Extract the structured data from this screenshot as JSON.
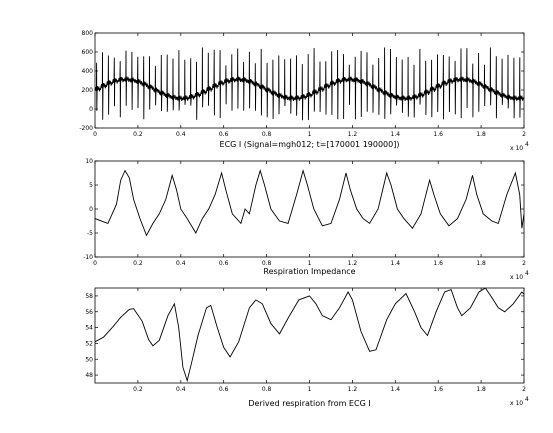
{
  "chart_data": [
    {
      "type": "line",
      "title": "",
      "xlabel": "ECG I   (Signal=mgh012; t=[170001 190000])",
      "ylabel": "",
      "x_multiplier_label": "x 10",
      "x_multiplier_exp": "4",
      "xlim": [
        0,
        20000
      ],
      "ylim": [
        -200,
        800
      ],
      "x_ticks": [
        0,
        2000,
        4000,
        6000,
        8000,
        10000,
        12000,
        14000,
        16000,
        18000,
        20000
      ],
      "x_tick_labels": [
        "0",
        "0.2",
        "0.4",
        "0.6",
        "0.8",
        "1",
        "1.2",
        "1.4",
        "1.6",
        "1.8",
        "2"
      ],
      "y_ticks": [
        -200,
        0,
        200,
        400,
        600,
        800
      ],
      "y_tick_labels": [
        "-200",
        "0",
        "200",
        "400",
        "600",
        "800"
      ],
      "grid": false,
      "series": [
        {
          "x_range": [
            0,
            20000
          ],
          "approx_beat_count": 73,
          "baseline_range": [
            100,
            300
          ],
          "r_peak_range": [
            450,
            650
          ],
          "trough_range": [
            -120,
            50
          ],
          "color": "#000000"
        }
      ]
    },
    {
      "type": "line",
      "title": "",
      "xlabel": "Respiration Impedance",
      "ylabel": "",
      "x_multiplier_label": "x 10",
      "x_multiplier_exp": "4",
      "xlim": [
        0,
        20000
      ],
      "ylim": [
        -10,
        10
      ],
      "x_ticks": [
        0,
        2000,
        4000,
        6000,
        8000,
        10000,
        12000,
        14000,
        16000,
        18000,
        20000
      ],
      "x_tick_labels": [
        "0",
        "0.2",
        "0.4",
        "0.6",
        "0.8",
        "1",
        "1.2",
        "1.4",
        "1.6",
        "1.8",
        "2"
      ],
      "y_ticks": [
        -10,
        -5,
        0,
        5,
        10
      ],
      "y_tick_labels": [
        "-10",
        "-5",
        "0",
        "5",
        "10"
      ],
      "grid": false,
      "series": [
        {
          "color": "#000000",
          "points": [
            [
              0,
              -2
            ],
            [
              600,
              -3
            ],
            [
              1000,
              1
            ],
            [
              1200,
              6
            ],
            [
              1400,
              8
            ],
            [
              1600,
              6.5
            ],
            [
              1800,
              2
            ],
            [
              2100,
              -2
            ],
            [
              2400,
              -5.5
            ],
            [
              2700,
              -3
            ],
            [
              3000,
              -1
            ],
            [
              3300,
              2
            ],
            [
              3600,
              7
            ],
            [
              3800,
              4
            ],
            [
              4000,
              0
            ],
            [
              4300,
              -2
            ],
            [
              4700,
              -5
            ],
            [
              5000,
              -2
            ],
            [
              5300,
              0
            ],
            [
              5600,
              3
            ],
            [
              5900,
              7.5
            ],
            [
              6100,
              4
            ],
            [
              6400,
              -1
            ],
            [
              6800,
              -3
            ],
            [
              7000,
              0
            ],
            [
              7200,
              -1
            ],
            [
              7500,
              5
            ],
            [
              7700,
              8
            ],
            [
              7900,
              5
            ],
            [
              8200,
              0
            ],
            [
              8600,
              -2.5
            ],
            [
              9000,
              -3
            ],
            [
              9400,
              3
            ],
            [
              9700,
              8
            ],
            [
              9900,
              5
            ],
            [
              10200,
              0
            ],
            [
              10600,
              -3.5
            ],
            [
              11000,
              -3
            ],
            [
              11400,
              2
            ],
            [
              11700,
              7.5
            ],
            [
              11900,
              4
            ],
            [
              12200,
              0
            ],
            [
              12500,
              -2
            ],
            [
              12800,
              -3
            ],
            [
              13200,
              0
            ],
            [
              13600,
              7.5
            ],
            [
              13800,
              5
            ],
            [
              14100,
              0
            ],
            [
              14400,
              -2
            ],
            [
              14800,
              -4
            ],
            [
              15200,
              -1
            ],
            [
              15600,
              6
            ],
            [
              15800,
              3
            ],
            [
              16100,
              -1
            ],
            [
              16500,
              -3.5
            ],
            [
              16900,
              -2
            ],
            [
              17300,
              2
            ],
            [
              17600,
              7
            ],
            [
              17800,
              3
            ],
            [
              18100,
              -1
            ],
            [
              18500,
              -2.5
            ],
            [
              18800,
              -3
            ],
            [
              19200,
              3
            ],
            [
              19600,
              7.5
            ],
            [
              19800,
              3
            ],
            [
              19900,
              -4
            ],
            [
              20000,
              -1
            ]
          ]
        }
      ]
    },
    {
      "type": "line",
      "title": "",
      "xlabel": "Derived respiration from ECG I",
      "ylabel": "",
      "x_multiplier_label": "x 10",
      "x_multiplier_exp": "4",
      "xlim": [
        0,
        20000
      ],
      "ylim": [
        47,
        59
      ],
      "x_ticks": [
        2000,
        4000,
        6000,
        8000,
        10000,
        12000,
        14000,
        16000,
        18000,
        20000
      ],
      "x_tick_labels": [
        "0.2",
        "0.4",
        "0.6",
        "0.8",
        "1",
        "1.2",
        "1.4",
        "1.6",
        "1.8",
        "2"
      ],
      "y_ticks": [
        48,
        50,
        52,
        54,
        56,
        58
      ],
      "y_tick_labels": [
        "48",
        "50",
        "52",
        "54",
        "56",
        "58"
      ],
      "grid": false,
      "series": [
        {
          "color": "#000000",
          "points": [
            [
              0,
              52.2
            ],
            [
              400,
              52.8
            ],
            [
              800,
              54
            ],
            [
              1200,
              55.3
            ],
            [
              1600,
              56.3
            ],
            [
              1800,
              56.4
            ],
            [
              2200,
              54.8
            ],
            [
              2500,
              52.5
            ],
            [
              2700,
              51.7
            ],
            [
              3000,
              52.4
            ],
            [
              3400,
              55.5
            ],
            [
              3700,
              57.0
            ],
            [
              3900,
              54
            ],
            [
              4100,
              49
            ],
            [
              4300,
              47.3
            ],
            [
              4500,
              49.5
            ],
            [
              4800,
              53
            ],
            [
              5200,
              56.5
            ],
            [
              5400,
              56.8
            ],
            [
              5700,
              54
            ],
            [
              6000,
              51.5
            ],
            [
              6300,
              50.3
            ],
            [
              6700,
              52.2
            ],
            [
              7200,
              56.5
            ],
            [
              7500,
              57.5
            ],
            [
              7800,
              57.0
            ],
            [
              8200,
              54.5
            ],
            [
              8600,
              53.2
            ],
            [
              9000,
              55.2
            ],
            [
              9500,
              57.5
            ],
            [
              10000,
              58.0
            ],
            [
              10300,
              57.0
            ],
            [
              10600,
              55.5
            ],
            [
              11000,
              55.0
            ],
            [
              11400,
              56.5
            ],
            [
              11800,
              58.5
            ],
            [
              12000,
              57.5
            ],
            [
              12400,
              53.5
            ],
            [
              12800,
              51.0
            ],
            [
              13100,
              51.2
            ],
            [
              13600,
              55.0
            ],
            [
              14000,
              57.0
            ],
            [
              14500,
              58.3
            ],
            [
              14900,
              56.0
            ],
            [
              15200,
              54.0
            ],
            [
              15500,
              53.0
            ],
            [
              15900,
              56.0
            ],
            [
              16300,
              58.5
            ],
            [
              16600,
              58.8
            ],
            [
              16900,
              56.5
            ],
            [
              17100,
              55.5
            ],
            [
              17500,
              56.5
            ],
            [
              17900,
              58.5
            ],
            [
              18200,
              59.0
            ],
            [
              18500,
              57.8
            ],
            [
              18800,
              56.5
            ],
            [
              19100,
              56.0
            ],
            [
              19500,
              57.0
            ],
            [
              19900,
              58.5
            ],
            [
              20000,
              58.2
            ]
          ]
        }
      ]
    }
  ]
}
